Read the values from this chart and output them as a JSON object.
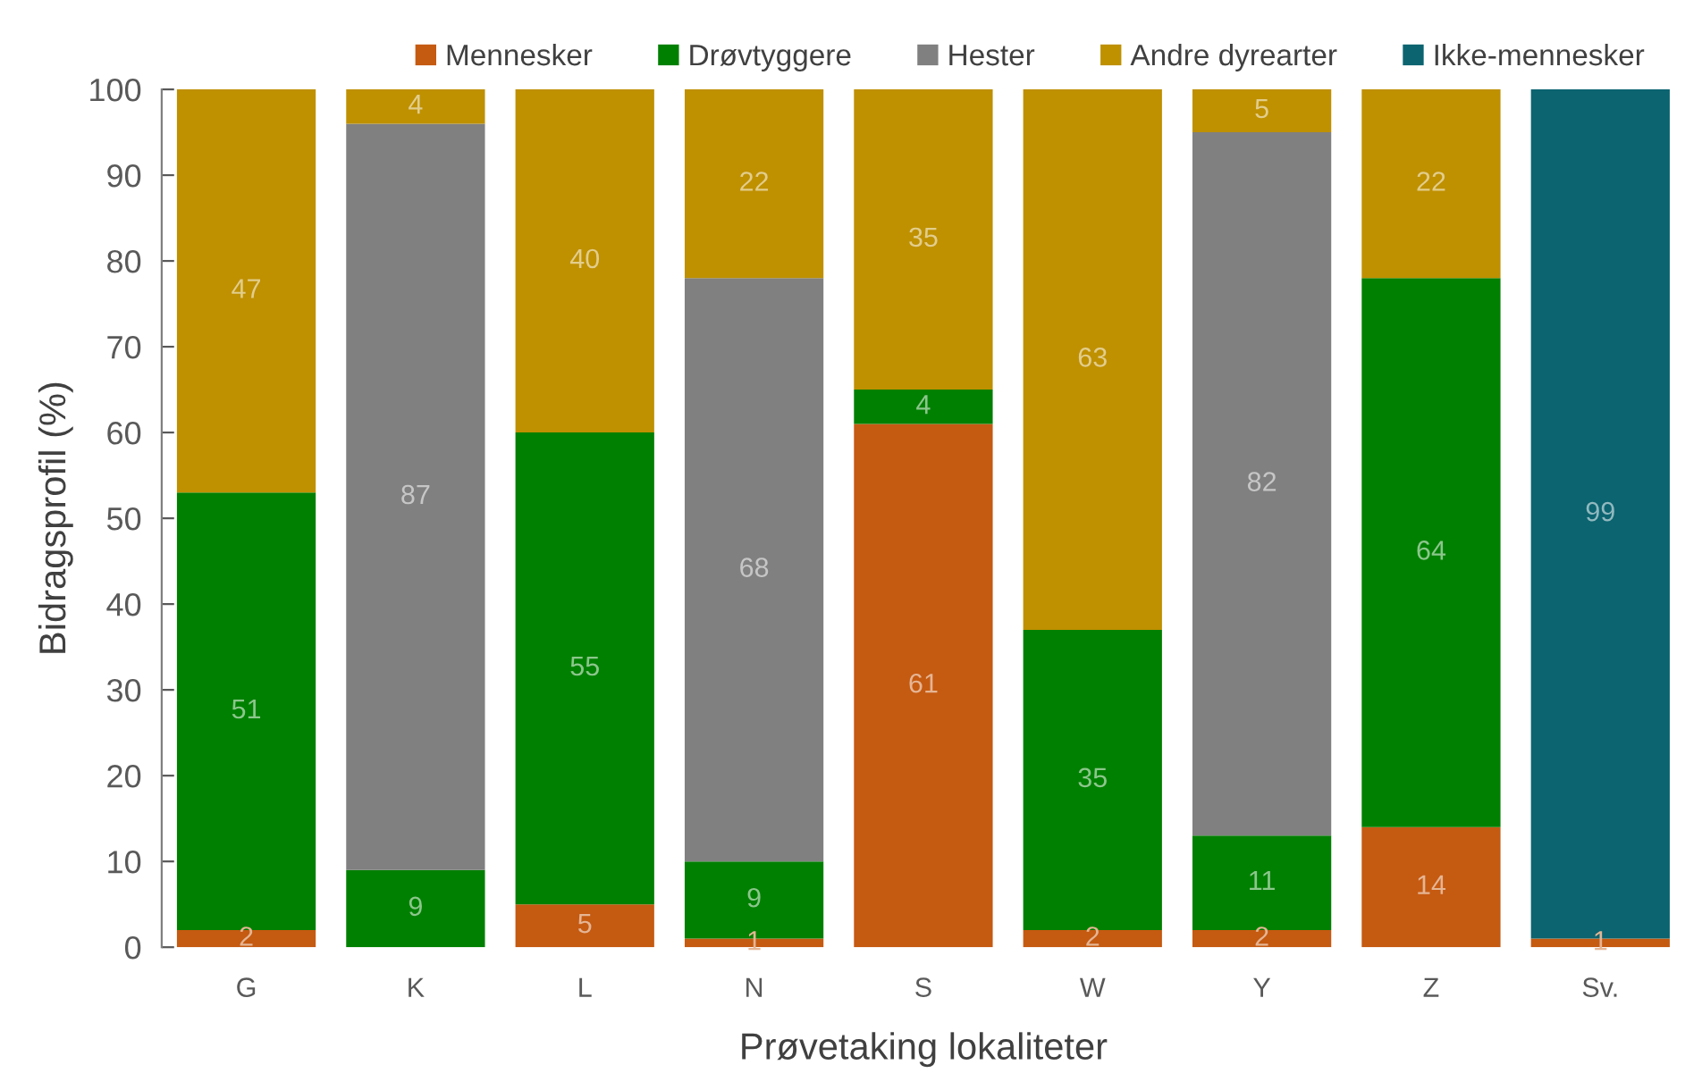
{
  "chart_data": {
    "type": "bar",
    "stacked": true,
    "xlabel": "Prøvetaking lokaliteter",
    "ylabel": "Bidragsprofil (%)",
    "categories": [
      "G",
      "K",
      "L",
      "N",
      "S",
      "W",
      "Y",
      "Z",
      "Sv."
    ],
    "series": [
      {
        "name": "Mennesker",
        "color": "#c55a11",
        "values": [
          2,
          null,
          5,
          1,
          61,
          2,
          2,
          14,
          1
        ]
      },
      {
        "name": "Drøvtyggere",
        "color": "#008000",
        "values": [
          51,
          9,
          55,
          9,
          4,
          35,
          11,
          64,
          null
        ]
      },
      {
        "name": "Hester",
        "color": "#808080",
        "values": [
          null,
          87,
          null,
          68,
          null,
          null,
          82,
          null,
          null
        ]
      },
      {
        "name": "Andre dyrearter",
        "color": "#bf9000",
        "values": [
          47,
          4,
          40,
          22,
          35,
          63,
          5,
          22,
          null
        ]
      },
      {
        "name": "Ikke-mennesker",
        "color": "#0b6470",
        "values": [
          null,
          null,
          null,
          null,
          null,
          null,
          null,
          null,
          99
        ]
      }
    ],
    "ylim": [
      0,
      100
    ],
    "yticks": [
      0,
      10,
      20,
      30,
      40,
      50,
      60,
      70,
      80,
      90,
      100
    ],
    "data_labels": true,
    "legend": "top",
    "grid": false
  }
}
